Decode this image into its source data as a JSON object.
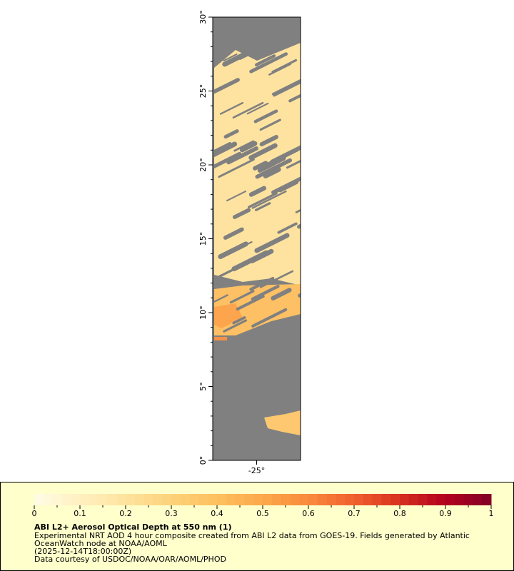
{
  "map": {
    "xlim": [
      -28,
      -22
    ],
    "ylim": [
      0,
      30
    ],
    "xticks": [
      {
        "value": -25,
        "label": "-25°"
      }
    ],
    "yticks": [
      {
        "value": 0,
        "label": "0°"
      },
      {
        "value": 5,
        "label": "5°"
      },
      {
        "value": 10,
        "label": "10°"
      },
      {
        "value": 15,
        "label": "15°"
      },
      {
        "value": 20,
        "label": "20°"
      },
      {
        "value": 25,
        "label": "25°"
      },
      {
        "value": 30,
        "label": "30°"
      }
    ]
  },
  "colorbar": {
    "lim": [
      0,
      1
    ],
    "ticks": [
      0,
      0.1,
      0.2,
      0.3,
      0.4,
      0.5,
      0.6,
      0.7,
      0.8,
      0.9,
      1
    ],
    "colors": [
      "#fffbe6",
      "#fff0c0",
      "#fee39e",
      "#fdd27a",
      "#fdc05e",
      "#fca84a",
      "#f98a3c",
      "#f0602d",
      "#d7301f",
      "#b3001e",
      "#800026"
    ]
  },
  "legend": {
    "title": "ABI L2+ Aerosol Optical Depth at 550 nm (1)",
    "lines": [
      "Experimental NRT AOD 4 hour composite created from ABI L2 data from GOES-19. Fields generated by Atlantic",
      "OceanWatch node at NOAA/AOML",
      "(2025-12-14T18:00:00Z)",
      "Data courtesy of USDOC/NOAA/OAR/AOML/PHOD"
    ]
  }
}
